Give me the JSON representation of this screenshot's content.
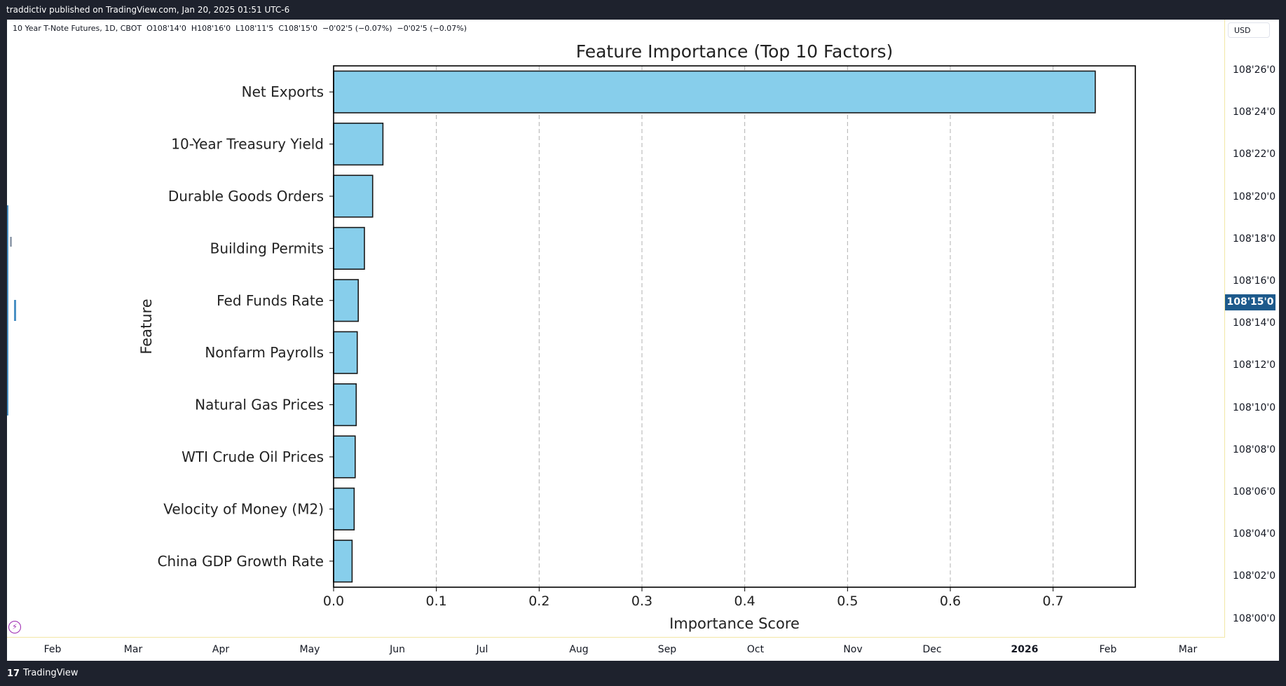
{
  "header": {
    "published": "traddictiv published on TradingView.com, Jan 20, 2025 01:51 UTC-6"
  },
  "symbol": {
    "name": "10 Year T-Note Futures, 1D, CBOT",
    "open": "O108'14'0",
    "high": "H108'16'0",
    "low": "L108'11'5",
    "close": "C108'15'0",
    "change": "−0'02'5 (−0.07%)",
    "change2": "−0'02'5 (−0.07%)"
  },
  "price_scale": {
    "currency": "USD",
    "current": "108'15'0",
    "labels": [
      "108'26'0",
      "108'24'0",
      "108'22'0",
      "108'20'0",
      "108'18'0",
      "108'16'0",
      "108'14'0",
      "108'12'0",
      "108'10'0",
      "108'08'0",
      "108'06'0",
      "108'04'0",
      "108'02'0",
      "108'00'0"
    ]
  },
  "time_axis": {
    "labels": [
      "Feb",
      "Mar",
      "Apr",
      "May",
      "Jun",
      "Jul",
      "Aug",
      "Sep",
      "Oct",
      "Nov",
      "Dec",
      "2026",
      "Feb",
      "Mar"
    ]
  },
  "footer": {
    "logo": "17",
    "brand": "TradingView"
  },
  "colors": {
    "bar_fill": "#87ceeb",
    "bar_edge": "#1a1a1a",
    "grid": "#b0b0b0",
    "current_price_bg": "#1d5a8c"
  },
  "chart_data": {
    "type": "bar",
    "orientation": "horizontal",
    "title": "Feature Importance (Top 10 Factors)",
    "xlabel": "Importance Score",
    "ylabel": "Feature",
    "xlim": [
      0,
      0.78
    ],
    "xticks": [
      "0.0",
      "0.1",
      "0.2",
      "0.3",
      "0.4",
      "0.5",
      "0.6",
      "0.7"
    ],
    "grid": "x-dashed",
    "categories": [
      "Net Exports",
      "10-Year Treasury Yield",
      "Durable Goods Orders",
      "Building Permits",
      "Fed Funds Rate",
      "Nonfarm Payrolls",
      "Natural Gas Prices",
      "WTI Crude Oil Prices",
      "Velocity of Money (M2)",
      "China GDP Growth Rate"
    ],
    "values": [
      0.741,
      0.048,
      0.038,
      0.03,
      0.024,
      0.023,
      0.022,
      0.021,
      0.02,
      0.018
    ]
  }
}
